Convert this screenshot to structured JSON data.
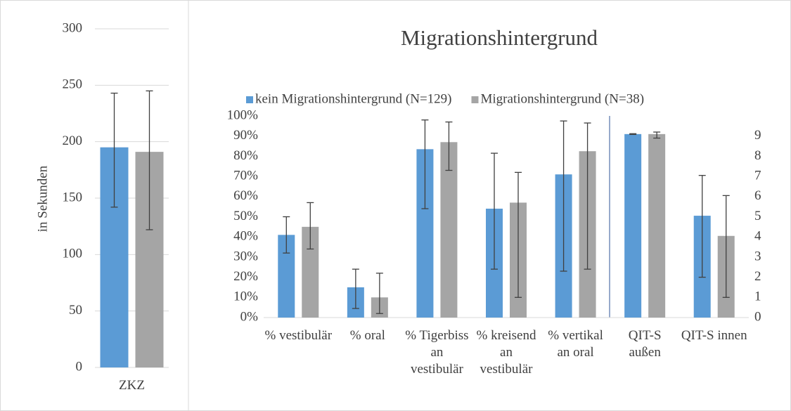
{
  "chart_data": [
    {
      "type": "bar",
      "y_label": "in Sekunden",
      "categories": [
        "ZKZ"
      ],
      "series": [
        {
          "name": "kein Migrationshintergrund (N=129)",
          "color": "#5b9bd5",
          "values": [
            195
          ],
          "error_minus": [
            53
          ],
          "error_plus": [
            48
          ]
        },
        {
          "name": "Migrationshintergrund (N=38)",
          "color": "#a5a5a5",
          "values": [
            191
          ],
          "error_minus": [
            69
          ],
          "error_plus": [
            54
          ]
        }
      ],
      "ylim": [
        0,
        300
      ],
      "yticks": [
        0,
        50,
        100,
        150,
        200,
        250,
        300
      ],
      "grid": true
    },
    {
      "type": "bar",
      "title": "Migrationshintergrund",
      "categories": [
        "% vestibulär",
        "% oral",
        "% Tigerbiss an vestibulär",
        "% kreisend an vestibulär",
        "% vertikal an oral",
        "QIT-S außen",
        "QIT-S innen"
      ],
      "series": [
        {
          "name": "kein Migrationshintergrund (N=129)",
          "color": "#5b9bd5",
          "values": [
            41,
            15,
            83.5,
            54,
            71,
            null,
            null
          ],
          "error_minus": [
            9,
            10.5,
            29.5,
            30,
            48,
            null,
            null
          ],
          "error_plus": [
            9,
            9,
            14.5,
            27.5,
            26.5,
            null,
            null
          ]
        },
        {
          "name": "Migrationshintergrund (N=38)",
          "color": "#a5a5a5",
          "values": [
            45,
            10,
            87,
            57,
            82.5,
            null,
            null
          ],
          "error_minus": [
            11,
            8,
            14,
            47,
            58.5,
            null,
            null
          ],
          "error_plus": [
            12,
            12,
            10,
            15,
            14,
            null,
            null
          ]
        },
        {
          "name": "kein Migrationshintergrund (N=129)",
          "color": "#5b9bd5",
          "axis": "y2",
          "values": [
            null,
            null,
            null,
            null,
            null,
            9.1,
            5.05
          ],
          "error_minus": [
            null,
            null,
            null,
            null,
            null,
            0.02,
            3.05
          ],
          "error_plus": [
            null,
            null,
            null,
            null,
            null,
            0.02,
            2.0
          ]
        },
        {
          "name": "Migrationshintergrund (N=38)",
          "color": "#a5a5a5",
          "axis": "y2",
          "values": [
            null,
            null,
            null,
            null,
            null,
            9.1,
            4.05
          ],
          "error_minus": [
            null,
            null,
            null,
            null,
            null,
            0.2,
            3.05
          ],
          "error_plus": [
            null,
            null,
            null,
            null,
            null,
            0.1,
            2.0
          ]
        }
      ],
      "ylim": [
        0,
        100
      ],
      "yticks": [
        {
          "value": 0,
          "label": "0%"
        },
        {
          "value": 10,
          "label": "10%"
        },
        {
          "value": 20,
          "label": "20%"
        },
        {
          "value": 30,
          "label": "30%"
        },
        {
          "value": 40,
          "label": "40%"
        },
        {
          "value": 50,
          "label": "50%"
        },
        {
          "value": 60,
          "label": "60%"
        },
        {
          "value": 70,
          "label": "70%"
        },
        {
          "value": 80,
          "label": "80%"
        },
        {
          "value": 90,
          "label": "90%"
        },
        {
          "value": 100,
          "label": "100%"
        }
      ],
      "y2lim": [
        0,
        10
      ],
      "y2ticks": [
        0,
        1,
        2,
        3,
        4,
        5,
        6,
        7,
        8,
        9
      ],
      "grid": false,
      "legend": "top"
    }
  ]
}
